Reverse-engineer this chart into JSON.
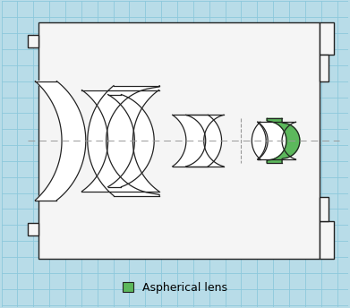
{
  "bg_color": "#b8dce8",
  "box_color": "#f5f5f5",
  "aspherical_color": "#5cb85c",
  "outline_color": "#222222",
  "axis_color": "#999999",
  "grid_color": "#8cc8dc",
  "legend_text": "Aspherical lens",
  "legend_fontsize": 9,
  "figsize": [
    3.91,
    3.44
  ],
  "dpi": 100
}
